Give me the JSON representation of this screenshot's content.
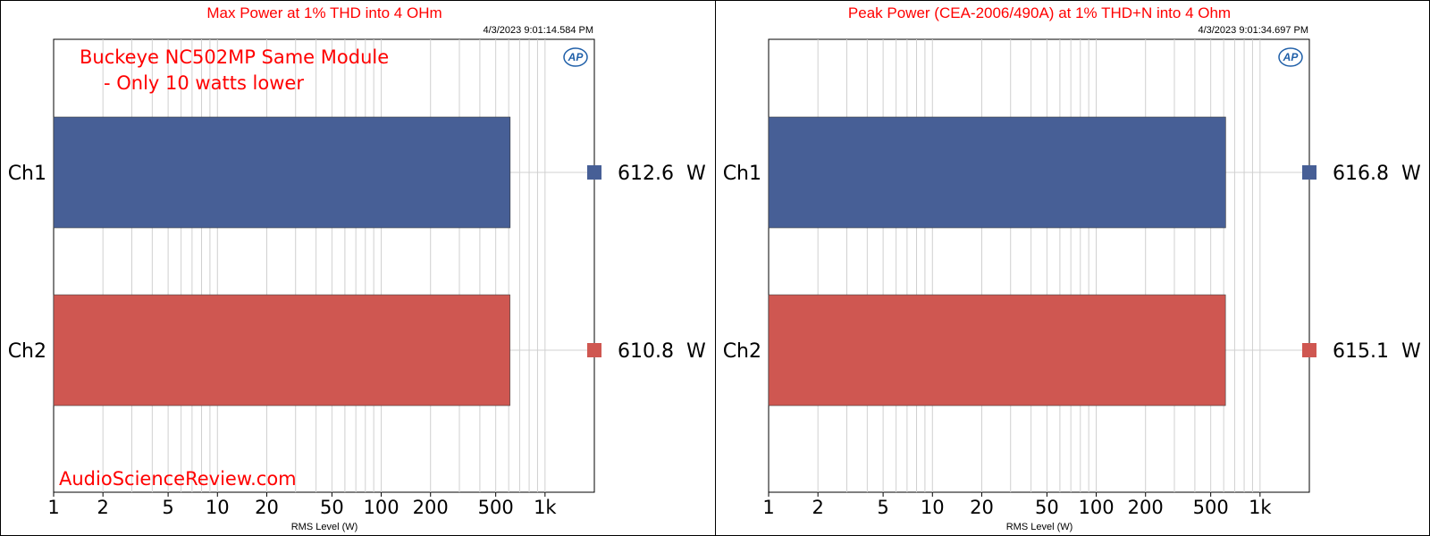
{
  "colors": {
    "ch1": "#475f96",
    "ch2": "#cf5751",
    "title": "#ff0000",
    "grid": "#d0d0d0",
    "logo": "#1f5fa8"
  },
  "logo": {
    "text": "AP"
  },
  "chart_data": [
    {
      "type": "bar",
      "orientation": "horizontal",
      "title": "Max Power at 1% THD into 4 OHm",
      "timestamp": "4/3/2023 9:01:14.584 PM",
      "categories": [
        "Ch1",
        "Ch2"
      ],
      "values": [
        612.6,
        610.8
      ],
      "value_labels": [
        "612.6  W",
        "610.8  W"
      ],
      "xlabel": "RMS Level (W)",
      "xscale": "log",
      "xlim": [
        1,
        2000
      ],
      "xticks": [
        1,
        2,
        5,
        10,
        20,
        50,
        100,
        200,
        500,
        1000
      ],
      "xtick_labels": [
        "1",
        "2",
        "5",
        "10",
        "20",
        "50",
        "100",
        "200",
        "500",
        "1k"
      ],
      "grid": true,
      "annotations": [
        "Buckeye NC502MP Same Module",
        "- Only 10 watts lower"
      ],
      "watermark": "AudioScienceReview.com"
    },
    {
      "type": "bar",
      "orientation": "horizontal",
      "title": "Peak Power (CEA-2006/490A) at 1% THD+N into 4 Ohm",
      "timestamp": "4/3/2023 9:01:34.697 PM",
      "categories": [
        "Ch1",
        "Ch2"
      ],
      "values": [
        616.8,
        615.1
      ],
      "value_labels": [
        "616.8  W",
        "615.1  W"
      ],
      "xlabel": "RMS Level (W)",
      "xscale": "log",
      "xlim": [
        1,
        2000
      ],
      "xticks": [
        1,
        2,
        5,
        10,
        20,
        50,
        100,
        200,
        500,
        1000
      ],
      "xtick_labels": [
        "1",
        "2",
        "5",
        "10",
        "20",
        "50",
        "100",
        "200",
        "500",
        "1k"
      ],
      "grid": true,
      "annotations": [],
      "watermark": ""
    }
  ]
}
